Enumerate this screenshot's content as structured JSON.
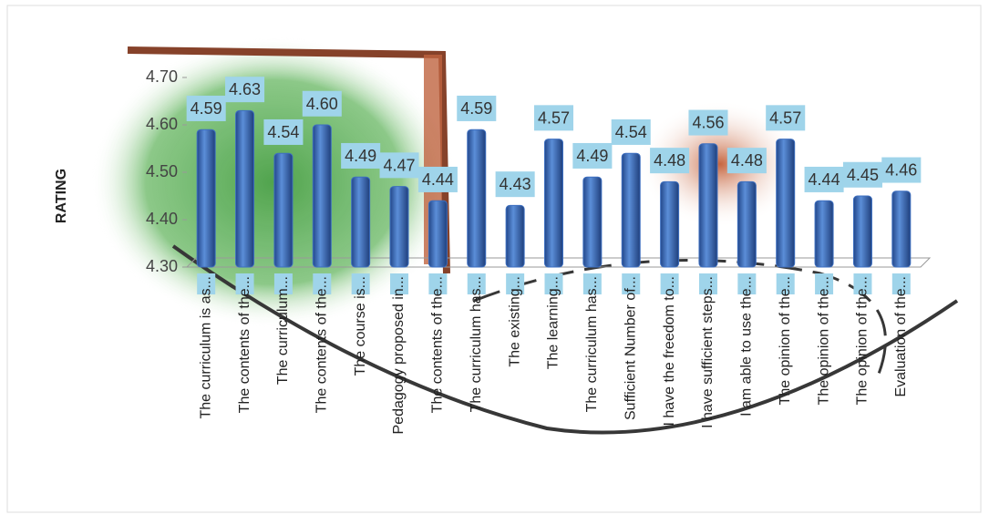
{
  "chart_data": {
    "type": "bar",
    "y_label": "RATING",
    "categories": [
      "The curriculum is as...",
      "The contents of the...",
      "The curriculum...",
      "The contents of the...",
      "The course is...",
      "Pedagogy proposed in...",
      "The contents of the...",
      "The curriculum has...",
      "The existing...",
      "The learning...",
      "The curriculum has...",
      "Sufficient Number of...",
      "I have the freedom to...",
      "I have sufficient steps...",
      "I am able to use the...",
      "The opinion of the...",
      "The opinion of the...",
      "The opinion of the...",
      "Evaluation of the..."
    ],
    "values": [
      4.59,
      4.63,
      4.54,
      4.6,
      4.49,
      4.47,
      4.44,
      4.59,
      4.43,
      4.57,
      4.49,
      4.54,
      4.48,
      4.56,
      4.48,
      4.57,
      4.44,
      4.45,
      4.46
    ],
    "value_labels": [
      "4.59",
      "4.63",
      "4.54",
      "4.60",
      "4.49",
      "4.47",
      "4.44",
      "4.59",
      "4.43",
      "4.57",
      "4.49",
      "4.54",
      "4.48",
      "4.56",
      "4.48",
      "4.57",
      "4.44",
      "4.45",
      "4.46"
    ],
    "color": "#3d6fc0",
    "label_box_color": "#9fd4ea",
    "ylim": [
      4.3,
      4.7
    ],
    "yticks": [
      {
        "value": 4.3,
        "label": "4.30"
      },
      {
        "value": 4.4,
        "label": "4.40"
      },
      {
        "value": 4.5,
        "label": "4.50"
      },
      {
        "value": 4.6,
        "label": "4.60"
      },
      {
        "value": 4.7,
        "label": "4.70"
      }
    ]
  }
}
